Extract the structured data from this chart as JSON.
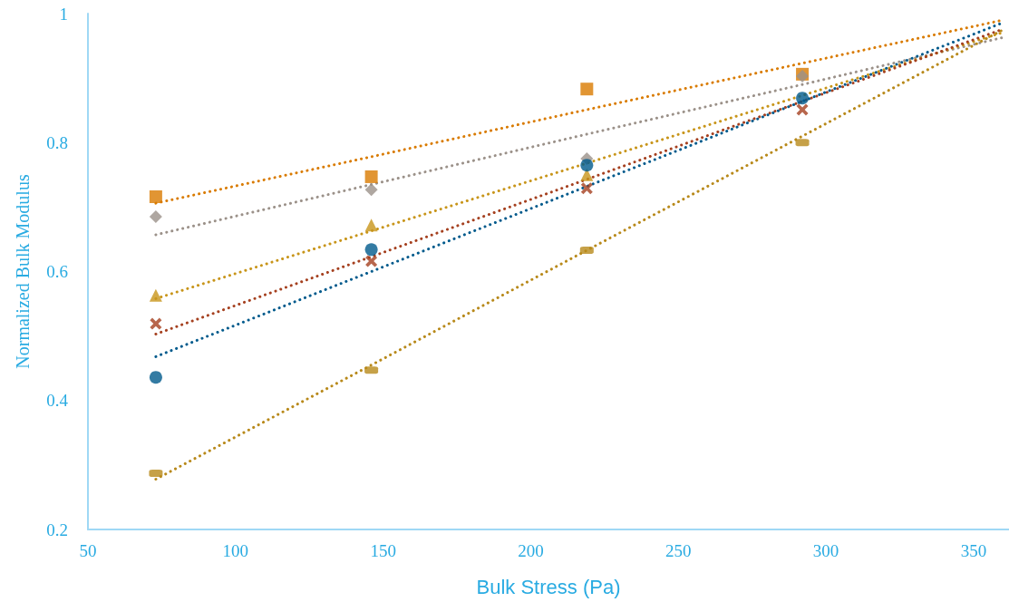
{
  "chart_data": {
    "type": "scatter",
    "xlabel": "Bulk Stress (Pa)",
    "ylabel": "Normalized Bulk Modulus",
    "x": [
      73,
      146,
      219,
      292
    ],
    "xlim": [
      50,
      362
    ],
    "xticks": [
      50,
      100,
      150,
      200,
      250,
      300,
      350
    ],
    "ylim": [
      0.2,
      1
    ],
    "yticks": [
      0.2,
      0.4,
      0.6,
      0.8,
      1
    ],
    "grid": false,
    "series": [
      {
        "type": "line",
        "color": "#d97b00",
        "x": [
          73,
          146,
          219,
          292,
          360
        ],
        "values": [
          0.706,
          0.778,
          0.851,
          0.923,
          0.99
        ],
        "line_style": "dotted",
        "marker": "none"
      },
      {
        "type": "line",
        "color": "#9b9189",
        "x": [
          73,
          146,
          219,
          292,
          360
        ],
        "values": [
          0.657,
          0.735,
          0.813,
          0.89,
          0.963
        ],
        "line_style": "dotted",
        "marker": "none"
      },
      {
        "type": "line",
        "color": "#c8951a",
        "x": [
          73,
          146,
          219,
          292,
          360
        ],
        "values": [
          0.558,
          0.663,
          0.768,
          0.873,
          0.971
        ],
        "line_style": "dotted",
        "marker": "none"
      },
      {
        "type": "line",
        "color": "#a5401f",
        "x": [
          73,
          146,
          219,
          292,
          360
        ],
        "values": [
          0.503,
          0.623,
          0.743,
          0.864,
          0.976
        ],
        "line_style": "dotted",
        "marker": "none"
      },
      {
        "type": "line",
        "color": "#005a8c",
        "x": [
          73,
          146,
          219,
          292,
          360
        ],
        "values": [
          0.468,
          0.6,
          0.732,
          0.864,
          0.986
        ],
        "line_style": "dotted",
        "marker": "none"
      },
      {
        "type": "line",
        "color": "#b8891a",
        "x": [
          73,
          146,
          219,
          292,
          360
        ],
        "values": [
          0.278,
          0.455,
          0.633,
          0.81,
          0.975
        ],
        "line_style": "dotted",
        "marker": "none"
      },
      {
        "color": "#d97b00",
        "marker": "square",
        "values": [
          0.716,
          0.747,
          0.883,
          0.906
        ]
      },
      {
        "color": "#9b9189",
        "marker": "diamond",
        "values": [
          0.685,
          0.727,
          0.775,
          0.903
        ]
      },
      {
        "color": "#c8951a",
        "marker": "triangle",
        "values": [
          0.563,
          0.672,
          0.75,
          null
        ]
      },
      {
        "color": "#a5401f",
        "marker": "cross",
        "values": [
          0.519,
          0.616,
          0.729,
          0.851
        ]
      },
      {
        "color": "#005a8c",
        "marker": "circle",
        "values": [
          0.436,
          0.634,
          0.765,
          0.869
        ]
      },
      {
        "color": "#b8891a",
        "values": [
          0.287,
          0.447,
          0.633,
          0.8
        ]
      }
    ]
  }
}
